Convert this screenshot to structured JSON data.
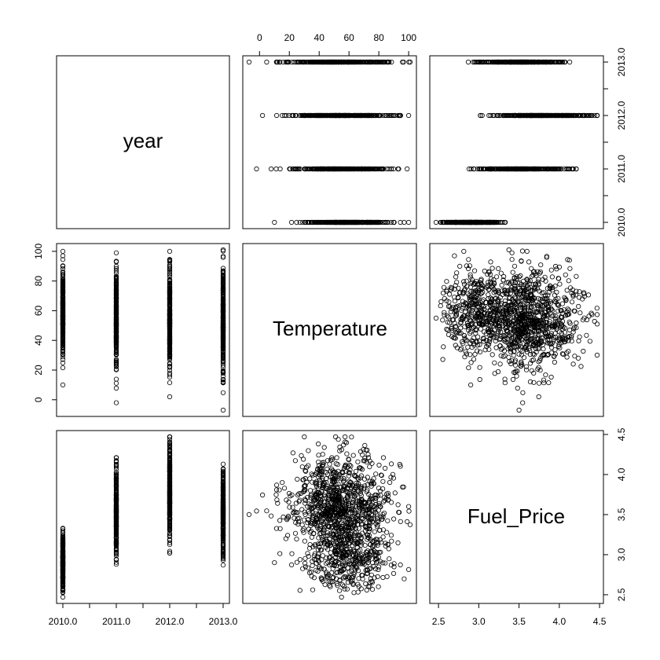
{
  "chart_data": {
    "type": "scatter",
    "plot_kind": "scatterplot matrix (pairs)",
    "variables": [
      "year",
      "Temperature",
      "Fuel_Price"
    ],
    "ranges": {
      "year": [
        2010,
        2013
      ],
      "Temperature": [
        -7,
        101
      ],
      "Fuel_Price": [
        2.47,
        4.47
      ]
    },
    "ticks": {
      "year": {
        "values": [
          2010,
          2011,
          2012,
          2013
        ],
        "labels": [
          "2010.0",
          "2011.0",
          "2012.0",
          "2013.0"
        ],
        "minor": [
          2010.5,
          2011.5,
          2012.5
        ]
      },
      "Temperature": {
        "values": [
          0,
          20,
          40,
          60,
          80,
          100
        ],
        "labels": [
          "0",
          "20",
          "40",
          "60",
          "80",
          "100"
        ]
      },
      "Fuel_Price": {
        "values": [
          2.5,
          3.0,
          3.5,
          4.0,
          4.5
        ],
        "labels": [
          "2.5",
          "3.0",
          "3.5",
          "4.0",
          "4.5"
        ]
      }
    },
    "year_distributions": [
      {
        "year": 2010,
        "temperature_range": [
          10,
          100
        ],
        "fuel_price_range": [
          2.47,
          3.33
        ]
      },
      {
        "year": 2011,
        "temperature_range": [
          -2,
          99
        ],
        "fuel_price_range": [
          2.88,
          4.21
        ]
      },
      {
        "year": 2012,
        "temperature_range": [
          2,
          100
        ],
        "fuel_price_range": [
          3.02,
          4.47
        ]
      },
      {
        "year": 2013,
        "temperature_range": [
          -7,
          101
        ],
        "fuel_price_range": [
          2.87,
          4.13
        ]
      }
    ],
    "marker": "open circle",
    "grid": false,
    "legend": "none",
    "color": "#000000"
  }
}
